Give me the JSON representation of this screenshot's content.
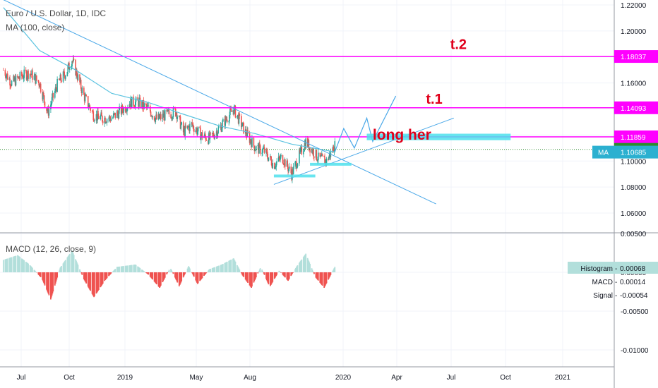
{
  "header": {
    "symbol_title": "Euro / U.S. Dollar, 1D, IDC",
    "ma_title": "MA (100, close)",
    "macd_title": "MACD (12, 26, close, 9)"
  },
  "colors": {
    "price_up": "#26a69a",
    "price_down": "#ef5350",
    "ma_line": "#5cc3e0",
    "trend_line": "#4aa8e8",
    "level_line": "#ff00ff",
    "annotation_text": "#e0001b",
    "highlight_box": "#4ee0ec",
    "hist_positive": "#b2dfdb",
    "hist_negative": "#ef5350",
    "current_price": "#2e8b2e"
  },
  "chart_data": [
    {
      "type": "candlestick",
      "title": "Euro / U.S. Dollar, 1D, IDC",
      "x_ticks": [
        "Jul",
        "Oct",
        "2019",
        "May",
        "Aug",
        "2020",
        "Apr",
        "Jul",
        "Oct",
        "2021"
      ],
      "y_ticks": [
        "1.22000",
        "1.20000",
        "1.18000",
        "1.16000",
        "1.14000",
        "1.12000",
        "1.10000",
        "1.08000",
        "1.06000"
      ],
      "ylim": [
        1.055,
        1.223
      ],
      "close_path": [
        [
          "2018-06-01",
          1.17
        ],
        [
          "2018-06-15",
          1.16
        ],
        [
          "2018-07-01",
          1.165
        ],
        [
          "2018-07-15",
          1.168
        ],
        [
          "2018-08-01",
          1.16
        ],
        [
          "2018-08-15",
          1.137
        ],
        [
          "2018-09-01",
          1.16
        ],
        [
          "2018-09-15",
          1.168
        ],
        [
          "2018-09-25",
          1.178
        ],
        [
          "2018-10-15",
          1.15
        ],
        [
          "2018-11-01",
          1.135
        ],
        [
          "2018-11-15",
          1.133
        ],
        [
          "2018-12-01",
          1.133
        ],
        [
          "2018-12-15",
          1.138
        ],
        [
          "2019-01-01",
          1.145
        ],
        [
          "2019-01-15",
          1.145
        ],
        [
          "2019-02-01",
          1.14
        ],
        [
          "2019-02-15",
          1.132
        ],
        [
          "2019-03-01",
          1.135
        ],
        [
          "2019-03-20",
          1.138
        ],
        [
          "2019-04-01",
          1.122
        ],
        [
          "2019-04-15",
          1.128
        ],
        [
          "2019-05-01",
          1.12
        ],
        [
          "2019-05-15",
          1.117
        ],
        [
          "2019-06-01",
          1.125
        ],
        [
          "2019-06-25",
          1.14
        ],
        [
          "2019-07-15",
          1.122
        ],
        [
          "2019-08-01",
          1.11
        ],
        [
          "2019-08-15",
          1.108
        ],
        [
          "2019-09-01",
          1.097
        ],
        [
          "2019-09-15",
          1.103
        ],
        [
          "2019-10-01",
          1.09
        ],
        [
          "2019-10-15",
          1.105
        ],
        [
          "2019-10-25",
          1.115
        ],
        [
          "2019-11-15",
          1.102
        ],
        [
          "2019-11-29",
          1.1
        ],
        [
          "2019-12-13",
          1.112
        ]
      ],
      "ma_100_path": [
        [
          "2018-06-01",
          1.218
        ],
        [
          "2018-08-01",
          1.185
        ],
        [
          "2018-10-01",
          1.17
        ],
        [
          "2018-12-01",
          1.152
        ],
        [
          "2019-02-01",
          1.145
        ],
        [
          "2019-04-01",
          1.136
        ],
        [
          "2019-06-01",
          1.127
        ],
        [
          "2019-08-01",
          1.121
        ],
        [
          "2019-10-01",
          1.113
        ],
        [
          "2019-12-13",
          1.107
        ]
      ],
      "horizontal_levels": [
        {
          "value": 1.18037,
          "label": "1.18037"
        },
        {
          "value": 1.14093,
          "label": "1.14093"
        },
        {
          "value": 1.11859,
          "label": "1.11859"
        }
      ],
      "current_price": {
        "value": 1.10898,
        "label": "1.10898"
      },
      "ma_value": {
        "value": 1.10685,
        "label": "1.10685",
        "tag": "MA"
      },
      "trend_lines": [
        {
          "from": [
            "2018-06-01",
            1.224
          ],
          "to": [
            "2020-06-01",
            1.067
          ]
        },
        {
          "from": [
            "2019-09-01",
            1.082
          ],
          "to": [
            "2020-07-01",
            1.133
          ]
        }
      ],
      "projection_path": [
        [
          "2019-12-13",
          1.107
        ],
        [
          "2019-12-28",
          1.125
        ],
        [
          "2020-01-15",
          1.11
        ],
        [
          "2020-02-05",
          1.133
        ],
        [
          "2020-02-15",
          1.115
        ],
        [
          "2020-03-25",
          1.15
        ]
      ],
      "highlight_zones": [
        {
          "from": "2019-09-01",
          "to": "2019-11-10",
          "value": 1.0885
        },
        {
          "from": "2019-11-01",
          "to": "2020-01-10",
          "value": 1.0975
        },
        {
          "from": "2020-02-05",
          "to": "2020-10-05",
          "value": 1.1185,
          "height": 0.005
        }
      ],
      "annotations": [
        {
          "text": "t.2",
          "date": "2020-06-25",
          "value": 1.186,
          "size": 20
        },
        {
          "text": "t.1",
          "date": "2020-05-15",
          "value": 1.144,
          "size": 20
        },
        {
          "text": "long her",
          "date": "2020-02-15",
          "value": 1.1165,
          "size": 21
        }
      ]
    },
    {
      "type": "macd",
      "title": "MACD (12, 26, close, 9)",
      "y_ticks": [
        "0.00500",
        "0.00000",
        "-0.00500",
        "-0.01000"
      ],
      "ylim": [
        -0.0115,
        0.0051
      ],
      "histogram_path": [
        [
          "2018-06-01",
          0.0016
        ],
        [
          "2018-06-25",
          0.0022
        ],
        [
          "2018-07-15",
          0.001
        ],
        [
          "2018-08-05",
          -0.0008
        ],
        [
          "2018-08-20",
          -0.0035
        ],
        [
          "2018-09-05",
          0.0006
        ],
        [
          "2018-09-25",
          0.0028
        ],
        [
          "2018-10-15",
          -0.0009
        ],
        [
          "2018-11-01",
          -0.0032
        ],
        [
          "2018-11-20",
          -0.001
        ],
        [
          "2018-12-10",
          0.0007
        ],
        [
          "2019-01-10",
          0.001
        ],
        [
          "2019-02-01",
          -0.0003
        ],
        [
          "2019-02-20",
          -0.002
        ],
        [
          "2019-03-10",
          0.0006
        ],
        [
          "2019-03-25",
          -0.0018
        ],
        [
          "2019-04-10",
          0.0008
        ],
        [
          "2019-04-25",
          -0.0015
        ],
        [
          "2019-05-15",
          0.0004
        ],
        [
          "2019-06-05",
          0.001
        ],
        [
          "2019-06-25",
          0.0018
        ],
        [
          "2019-07-10",
          -0.0004
        ],
        [
          "2019-07-25",
          -0.002
        ],
        [
          "2019-08-10",
          0.0007
        ],
        [
          "2019-08-25",
          -0.0019
        ],
        [
          "2019-09-10",
          0.0002
        ],
        [
          "2019-09-25",
          -0.0011
        ],
        [
          "2019-10-10",
          0.0008
        ],
        [
          "2019-10-25",
          0.0024
        ],
        [
          "2019-11-10",
          -0.0006
        ],
        [
          "2019-11-25",
          -0.002
        ],
        [
          "2019-12-13",
          0.0007
        ]
      ],
      "legend": [
        {
          "name": "Histogram",
          "value": "0.00068"
        },
        {
          "name": "MACD",
          "value": "0.00014"
        },
        {
          "name": "Signal",
          "value": "-0.00054"
        }
      ]
    }
  ]
}
